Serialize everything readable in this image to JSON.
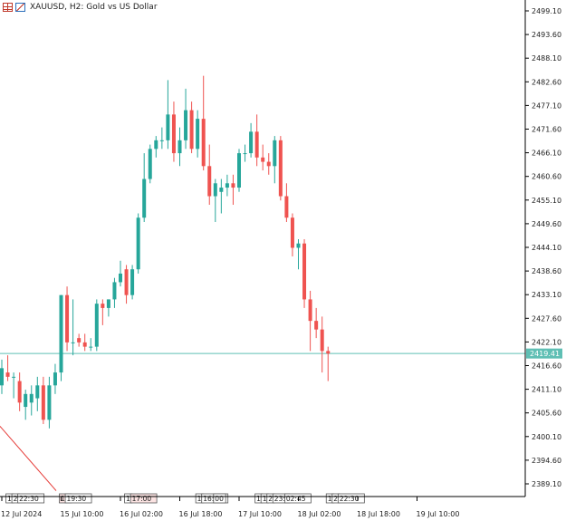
{
  "header": {
    "symbol": "XAUUSD",
    "timeframe": "H2",
    "description": "Gold vs US Dollar",
    "icons": [
      "grid-view-icon",
      "chart-toggle-icon"
    ]
  },
  "chart_data": {
    "type": "candlestick",
    "symbol": "XAUUSD",
    "timeframe": "H2",
    "title": "XAUUSD, H2:  Gold vs US Dollar",
    "ylim": [
      2384.0,
      2503.0
    ],
    "y_ticks": [
      2499.1,
      2493.6,
      2488.1,
      2482.6,
      2477.1,
      2471.6,
      2466.1,
      2460.6,
      2455.1,
      2449.6,
      2444.1,
      2438.6,
      2433.1,
      2427.6,
      2422.1,
      2416.6,
      2411.1,
      2405.6,
      2400.1,
      2394.6,
      2389.1
    ],
    "y_tick_labels": [
      "2499.10",
      "2493.60",
      "2488.10",
      "2482.60",
      "2477.10",
      "2471.60",
      "2466.10",
      "2460.60",
      "2455.10",
      "2449.60",
      "2444.10",
      "2438.60",
      "2433.10",
      "2427.60",
      "2422.10",
      "2416.60",
      "2411.10",
      "2405.60",
      "2400.10",
      "2394.60",
      "2389.10"
    ],
    "x_labels": [
      {
        "index": 0,
        "label": "12 Jul 2024"
      },
      {
        "index": 10,
        "label": "15 Jul 10:00"
      },
      {
        "index": 20,
        "label": "16 Jul 02:00"
      },
      {
        "index": 30,
        "label": "16 Jul 18:00"
      },
      {
        "index": 40,
        "label": "17 Jul 10:00"
      },
      {
        "index": 50,
        "label": "18 Jul 02:00"
      },
      {
        "index": 60,
        "label": "18 Jul 18:00"
      },
      {
        "index": 70,
        "label": "19 Jul 10:00"
      }
    ],
    "current_price": 2419.41,
    "current_price_label": "2419.41",
    "colors": {
      "up": "#26a69a",
      "down": "#ef5350",
      "price_line": "#5fbfb4",
      "trend_line": "#e53935"
    },
    "candles": [
      {
        "o": 2412.0,
        "h": 2418.0,
        "l": 2410.0,
        "c": 2416.0
      },
      {
        "o": 2415.0,
        "h": 2419.0,
        "l": 2413.0,
        "c": 2414.0
      },
      {
        "o": 2414.0,
        "h": 2415.0,
        "l": 2409.0,
        "c": 2414.0
      },
      {
        "o": 2413.0,
        "h": 2415.0,
        "l": 2406.0,
        "c": 2408.0
      },
      {
        "o": 2407.0,
        "h": 2411.0,
        "l": 2404.0,
        "c": 2410.0
      },
      {
        "o": 2408.0,
        "h": 2412.0,
        "l": 2405.0,
        "c": 2410.0
      },
      {
        "o": 2409.0,
        "h": 2414.0,
        "l": 2406.0,
        "c": 2412.0
      },
      {
        "o": 2412.0,
        "h": 2414.0,
        "l": 2403.0,
        "c": 2404.0
      },
      {
        "o": 2404.0,
        "h": 2414.0,
        "l": 2402.0,
        "c": 2412.0
      },
      {
        "o": 2412.0,
        "h": 2417.0,
        "l": 2410.0,
        "c": 2415.0
      },
      {
        "o": 2415.0,
        "h": 2433.0,
        "l": 2413.0,
        "c": 2433.0
      },
      {
        "o": 2433.0,
        "h": 2435.0,
        "l": 2420.0,
        "c": 2422.0
      },
      {
        "o": 2422.0,
        "h": 2432.0,
        "l": 2419.0,
        "c": 2422.0
      },
      {
        "o": 2423.0,
        "h": 2424.0,
        "l": 2421.0,
        "c": 2422.0
      },
      {
        "o": 2422.0,
        "h": 2424.0,
        "l": 2420.0,
        "c": 2421.0
      },
      {
        "o": 2421.0,
        "h": 2423.0,
        "l": 2420.0,
        "c": 2421.0
      },
      {
        "o": 2421.0,
        "h": 2432.0,
        "l": 2420.0,
        "c": 2431.0
      },
      {
        "o": 2431.0,
        "h": 2432.0,
        "l": 2426.0,
        "c": 2430.0
      },
      {
        "o": 2430.0,
        "h": 2432.0,
        "l": 2428.0,
        "c": 2432.0
      },
      {
        "o": 2432.0,
        "h": 2437.0,
        "l": 2430.0,
        "c": 2436.0
      },
      {
        "o": 2436.0,
        "h": 2441.0,
        "l": 2435.0,
        "c": 2438.0
      },
      {
        "o": 2439.0,
        "h": 2440.0,
        "l": 2431.0,
        "c": 2433.0
      },
      {
        "o": 2433.0,
        "h": 2440.0,
        "l": 2432.0,
        "c": 2439.0
      },
      {
        "o": 2439.0,
        "h": 2452.0,
        "l": 2438.0,
        "c": 2451.0
      },
      {
        "o": 2451.0,
        "h": 2466.0,
        "l": 2450.0,
        "c": 2460.0
      },
      {
        "o": 2460.0,
        "h": 2468.0,
        "l": 2459.0,
        "c": 2467.0
      },
      {
        "o": 2467.0,
        "h": 2470.0,
        "l": 2465.0,
        "c": 2469.0
      },
      {
        "o": 2469.0,
        "h": 2472.0,
        "l": 2467.0,
        "c": 2469.0
      },
      {
        "o": 2469.0,
        "h": 2483.0,
        "l": 2467.0,
        "c": 2475.0
      },
      {
        "o": 2475.0,
        "h": 2478.0,
        "l": 2464.0,
        "c": 2466.0
      },
      {
        "o": 2466.0,
        "h": 2472.0,
        "l": 2463.0,
        "c": 2469.0
      },
      {
        "o": 2469.0,
        "h": 2481.0,
        "l": 2467.0,
        "c": 2476.0
      },
      {
        "o": 2476.0,
        "h": 2478.0,
        "l": 2466.0,
        "c": 2467.0
      },
      {
        "o": 2467.0,
        "h": 2476.0,
        "l": 2465.0,
        "c": 2474.0
      },
      {
        "o": 2474.0,
        "h": 2484.0,
        "l": 2462.0,
        "c": 2463.0
      },
      {
        "o": 2463.0,
        "h": 2468.0,
        "l": 2454.0,
        "c": 2456.0
      },
      {
        "o": 2456.0,
        "h": 2460.0,
        "l": 2450.0,
        "c": 2459.0
      },
      {
        "o": 2457.0,
        "h": 2460.0,
        "l": 2452.0,
        "c": 2458.0
      },
      {
        "o": 2458.0,
        "h": 2461.0,
        "l": 2456.0,
        "c": 2459.0
      },
      {
        "o": 2459.0,
        "h": 2461.0,
        "l": 2454.0,
        "c": 2458.0
      },
      {
        "o": 2458.0,
        "h": 2467.0,
        "l": 2457.0,
        "c": 2466.0
      },
      {
        "o": 2466.0,
        "h": 2468.0,
        "l": 2464.0,
        "c": 2466.0
      },
      {
        "o": 2466.0,
        "h": 2473.0,
        "l": 2465.0,
        "c": 2471.0
      },
      {
        "o": 2471.0,
        "h": 2475.0,
        "l": 2463.0,
        "c": 2465.0
      },
      {
        "o": 2465.0,
        "h": 2468.0,
        "l": 2462.0,
        "c": 2464.0
      },
      {
        "o": 2464.0,
        "h": 2466.0,
        "l": 2461.0,
        "c": 2463.0
      },
      {
        "o": 2463.0,
        "h": 2470.0,
        "l": 2459.0,
        "c": 2469.0
      },
      {
        "o": 2469.0,
        "h": 2470.0,
        "l": 2455.0,
        "c": 2456.0
      },
      {
        "o": 2456.0,
        "h": 2459.0,
        "l": 2450.0,
        "c": 2451.0
      },
      {
        "o": 2451.0,
        "h": 2452.0,
        "l": 2442.0,
        "c": 2444.0
      },
      {
        "o": 2444.0,
        "h": 2446.0,
        "l": 2439.0,
        "c": 2445.0
      },
      {
        "o": 2445.0,
        "h": 2446.0,
        "l": 2430.0,
        "c": 2432.0
      },
      {
        "o": 2432.0,
        "h": 2434.0,
        "l": 2420.0,
        "c": 2427.0
      },
      {
        "o": 2427.0,
        "h": 2430.0,
        "l": 2423.0,
        "c": 2425.0
      },
      {
        "o": 2425.0,
        "h": 2428.0,
        "l": 2415.0,
        "c": 2420.0
      },
      {
        "o": 2420.0,
        "h": 2421.0,
        "l": 2413.0,
        "c": 2419.4
      }
    ]
  },
  "time_markers": [
    {
      "label": "1",
      "x": 1,
      "highlight": false
    },
    {
      "label": "2",
      "x": 2,
      "highlight": false
    },
    {
      "label": "22:30",
      "x": 3,
      "highlight": false
    },
    {
      "label": "15",
      "x": 10,
      "highlight": true
    },
    {
      "label": "19:30",
      "x": 11,
      "highlight": false
    },
    {
      "label": "1",
      "x": 21,
      "highlight": false
    },
    {
      "label": "17:00",
      "x": 22,
      "highlight": true
    },
    {
      "label": "1",
      "x": 33,
      "highlight": false
    },
    {
      "label": "16:35",
      "x": 34,
      "highlight": false
    },
    {
      "label": "00",
      "x": 36,
      "highlight": false
    },
    {
      "label": "1",
      "x": 43,
      "highlight": false
    },
    {
      "label": "1",
      "x": 44,
      "highlight": false
    },
    {
      "label": "2",
      "x": 45,
      "highlight": false
    },
    {
      "label": "23:",
      "x": 46,
      "highlight": false
    },
    {
      "label": "02:45",
      "x": 48,
      "highlight": false
    },
    {
      "label": "1",
      "x": 55,
      "highlight": false
    },
    {
      "label": "2",
      "x": 56,
      "highlight": false
    },
    {
      "label": "22:30",
      "x": 57,
      "highlight": false
    }
  ]
}
